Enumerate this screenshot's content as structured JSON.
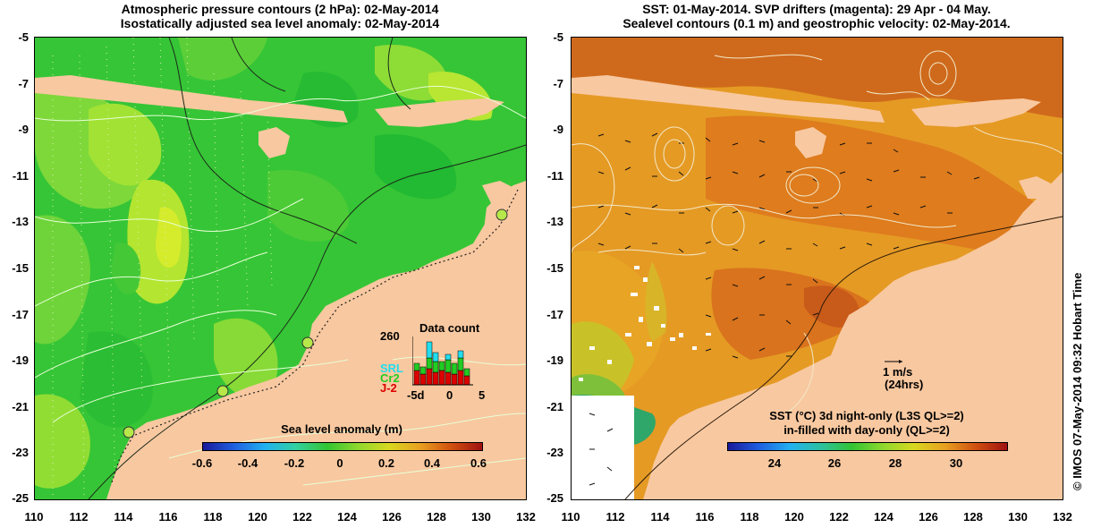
{
  "left_panel": {
    "title_line1": "Atmospheric pressure contours (2 hPa): 02-May-2014",
    "title_line2": "Isostatically adjusted sea level anomaly: 02-May-2014",
    "colorbar": {
      "title": "Sea level anomaly (m)",
      "labels": [
        "-0.6",
        "-0.4",
        "-0.2",
        "0",
        "0.2",
        "0.4",
        "0.6"
      ],
      "range": [
        -0.6,
        0.6
      ]
    },
    "data_count": {
      "title": "Data count",
      "max_label": "260",
      "legend": [
        "SRL",
        "Cr2",
        "J-2"
      ],
      "legend_colors": [
        "#22ddee",
        "#22cc22",
        "#dd0000"
      ],
      "x_labels": [
        "-5d",
        "0",
        "5"
      ]
    }
  },
  "right_panel": {
    "title_line1": "SST: 01-May-2014. SVP drifters (magenta): 29 Apr - 04 May.",
    "title_line2": "Sealevel contours (0.1 m) and geostrophic velocity: 02-May-2014.",
    "velocity_scale": {
      "label": "1 m/s",
      "sublabel": "(24hrs)"
    },
    "colorbar": {
      "title_line1": "SST (°C) 3d night-only (L3S QL>=2)",
      "title_line2": "in-filled with day-only (QL>=2)",
      "labels": [
        "24",
        "26",
        "28",
        "30"
      ],
      "range": [
        22.3,
        31.5
      ]
    }
  },
  "axes": {
    "y_labels": [
      "-5",
      "-7",
      "-9",
      "-11",
      "-13",
      "-15",
      "-17",
      "-19",
      "-21",
      "-23",
      "-25"
    ],
    "x_labels": [
      "110",
      "112",
      "114",
      "116",
      "118",
      "120",
      "122",
      "124",
      "126",
      "128",
      "130",
      "132"
    ]
  },
  "credit": "© IMOS 07-May-2014 09:32 Hobart Time",
  "colors": {
    "land": "#f8c8a0",
    "sla_base": "#33c233",
    "sst_base": "#e89422"
  }
}
